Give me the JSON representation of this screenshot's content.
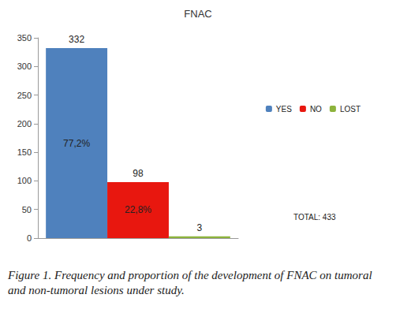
{
  "chart_data": {
    "type": "bar",
    "title": "FNAC",
    "categories": [
      null
    ],
    "series": [
      {
        "name": "YES",
        "color": "#4f81bd",
        "values": [
          332
        ],
        "annotation": "77,2%"
      },
      {
        "name": "NO",
        "color": "#e8170f",
        "values": [
          98
        ],
        "annotation": "22,8%"
      },
      {
        "name": "LOST",
        "color": "#8db33c",
        "values": [
          3
        ]
      }
    ],
    "ylim": [
      0,
      350
    ],
    "yticks": [
      0,
      50,
      100,
      150,
      200,
      250,
      300,
      350
    ],
    "grid": false,
    "data_labels": true,
    "tick_labels": "y",
    "legend": "right",
    "total_label": "TOTAL: 433",
    "caption": "Figure 1. Frequency and proportion of the development of FNAC on tumoral and non-tumoral lesions under study."
  }
}
